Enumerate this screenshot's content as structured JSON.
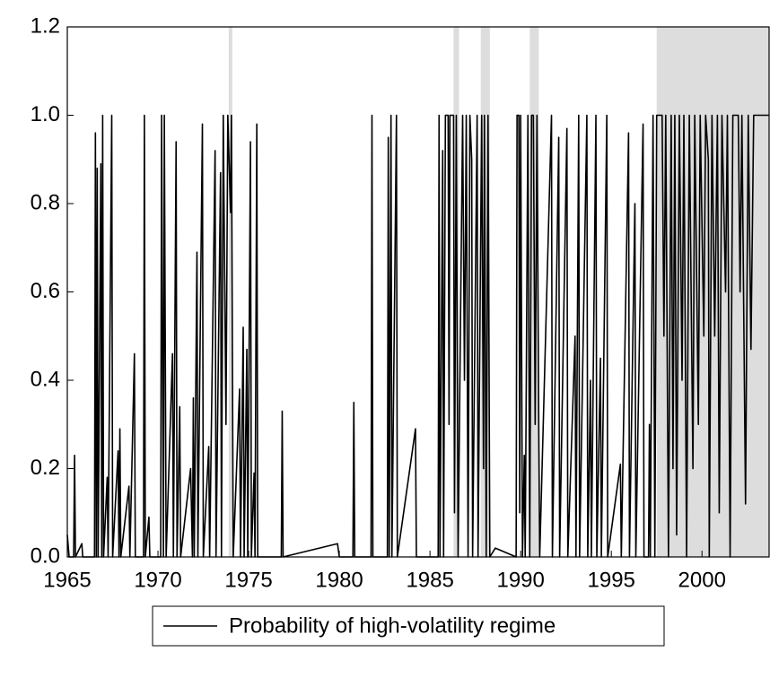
{
  "chart_data": {
    "type": "line",
    "x": [
      1965.0,
      1965.1,
      1965.35,
      1965.4,
      1965.45,
      1965.8,
      1965.85,
      1966.5,
      1966.55,
      1966.6,
      1966.65,
      1966.7,
      1966.85,
      1966.9,
      1966.95,
      1967.0,
      1967.2,
      1967.25,
      1967.45,
      1967.5,
      1967.8,
      1967.85,
      1967.9,
      1967.95,
      1968.4,
      1968.45,
      1968.7,
      1968.75,
      1969.2,
      1969.25,
      1969.3,
      1969.5,
      1969.55,
      1970.15,
      1970.2,
      1970.3,
      1970.35,
      1970.45,
      1970.8,
      1970.85,
      1971.0,
      1971.05,
      1971.2,
      1971.25,
      1971.8,
      1971.9,
      1971.95,
      1972.0,
      1972.15,
      1972.2,
      1972.45,
      1972.5,
      1972.8,
      1972.85,
      1973.15,
      1973.2,
      1973.45,
      1973.5,
      1973.6,
      1973.75,
      1973.85,
      1974.0,
      1974.05,
      1974.15,
      1974.5,
      1974.55,
      1974.7,
      1974.75,
      1974.9,
      1974.95,
      1975.1,
      1975.15,
      1975.3,
      1975.35,
      1975.45,
      1975.5,
      1976.8,
      1976.85,
      1976.9,
      1979.9,
      1980.0,
      1980.75,
      1980.8,
      1980.85,
      1981.75,
      1981.8,
      1981.85,
      1982.65,
      1982.7,
      1982.75,
      1982.85,
      1982.9,
      1983.15,
      1983.2,
      1984.2,
      1984.25,
      1985.45,
      1985.5,
      1985.55,
      1985.7,
      1985.75,
      1985.85,
      1986.0,
      1986.05,
      1986.1,
      1986.3,
      1986.35,
      1986.45,
      1986.55,
      1986.8,
      1986.9,
      1987.0,
      1987.1,
      1987.2,
      1987.3,
      1987.35,
      1987.6,
      1987.65,
      1987.85,
      1987.95,
      1988.0,
      1988.1,
      1988.2,
      1988.3,
      1988.6,
      1989.75,
      1989.8,
      1989.9,
      1989.95,
      1990.0,
      1990.1,
      1990.2,
      1990.25,
      1990.4,
      1990.5,
      1990.6,
      1990.7,
      1990.8,
      1990.9,
      1991.0,
      1991.05,
      1991.7,
      1991.75,
      1992.1,
      1992.15,
      1992.55,
      1992.6,
      1993.0,
      1993.05,
      1993.2,
      1993.25,
      1993.65,
      1993.7,
      1993.85,
      1993.9,
      1994.15,
      1994.2,
      1994.4,
      1994.45,
      1994.75,
      1994.8,
      1995.5,
      1995.55,
      1995.95,
      1996.0,
      1996.3,
      1996.35,
      1996.75,
      1996.8,
      1997.05,
      1997.1,
      1997.15,
      1997.3,
      1997.4,
      1997.5,
      1997.8,
      1997.9,
      1998.0,
      1998.15,
      1998.3,
      1998.4,
      1998.5,
      1998.6,
      1998.75,
      1998.9,
      1999.0,
      1999.15,
      1999.3,
      1999.5,
      1999.6,
      1999.8,
      1999.9,
      2000.1,
      2000.2,
      2000.35,
      2000.4,
      2000.55,
      2000.7,
      2000.85,
      2000.95,
      2001.1,
      2001.3,
      2001.4,
      2001.55,
      2001.7,
      2002.0,
      2002.1,
      2002.2,
      2002.4,
      2002.55,
      2002.7,
      2002.85,
      2003.2,
      2003.7
    ],
    "series": [
      {
        "name": "Probability of high-volatility regime",
        "color": "#000000",
        "values": [
          0.05,
          0.0,
          0.0,
          0.23,
          0.0,
          0.03,
          0.0,
          0.0,
          0.96,
          0.0,
          0.88,
          0.0,
          0.89,
          0.0,
          1.0,
          0.0,
          0.18,
          0.0,
          1.0,
          0.0,
          0.24,
          0.0,
          0.29,
          0.0,
          0.16,
          0.0,
          0.46,
          0.0,
          0.0,
          1.0,
          0.0,
          0.09,
          0.0,
          0.0,
          1.0,
          0.0,
          1.0,
          0.0,
          0.46,
          0.0,
          0.94,
          0.0,
          0.34,
          0.0,
          0.2,
          0.0,
          0.36,
          0.0,
          0.69,
          0.0,
          0.98,
          0.0,
          0.25,
          0.0,
          0.92,
          0.0,
          0.87,
          0.0,
          1.0,
          0.3,
          1.0,
          0.78,
          1.0,
          0.0,
          0.38,
          0.0,
          0.52,
          0.0,
          0.47,
          0.0,
          0.94,
          0.0,
          0.19,
          0.0,
          0.98,
          0.0,
          0.0,
          0.33,
          0.0,
          0.03,
          0.0,
          0.0,
          0.35,
          0.0,
          0.0,
          1.0,
          0.0,
          0.0,
          0.95,
          0.0,
          1.0,
          0.0,
          1.0,
          0.0,
          0.29,
          0.0,
          0.0,
          1.0,
          0.0,
          0.92,
          0.0,
          1.0,
          1.0,
          0.3,
          1.0,
          1.0,
          0.1,
          1.0,
          0.0,
          1.0,
          0.4,
          1.0,
          0.0,
          1.0,
          0.9,
          0.0,
          1.0,
          0.0,
          1.0,
          0.2,
          1.0,
          0.0,
          1.0,
          0.0,
          0.02,
          0.0,
          1.0,
          1.0,
          0.1,
          1.0,
          0.0,
          0.23,
          0.0,
          1.0,
          0.0,
          1.0,
          1.0,
          0.3,
          1.0,
          0.28,
          0.0,
          1.0,
          0.0,
          0.95,
          0.0,
          0.97,
          0.0,
          0.5,
          0.0,
          1.0,
          0.0,
          1.0,
          0.0,
          0.4,
          0.0,
          1.0,
          0.0,
          0.45,
          0.0,
          1.0,
          0.0,
          0.21,
          0.0,
          0.96,
          0.0,
          0.8,
          0.0,
          0.98,
          0.0,
          0.0,
          0.3,
          0.0,
          1.0,
          0.0,
          1.0,
          1.0,
          0.5,
          1.0,
          0.0,
          1.0,
          0.2,
          1.0,
          0.05,
          1.0,
          0.4,
          1.0,
          0.0,
          1.0,
          0.2,
          1.0,
          0.3,
          1.0,
          0.5,
          1.0,
          0.9,
          0.0,
          1.0,
          0.5,
          1.0,
          0.1,
          1.0,
          0.6,
          1.0,
          0.0,
          1.0,
          1.0,
          0.6,
          1.0,
          0.12,
          1.0,
          0.47,
          1.0,
          1.0,
          1.0
        ]
      }
    ],
    "shaded_regions": [
      [
        1973.9,
        1974.1
      ],
      [
        1986.3,
        1986.6
      ],
      [
        1987.8,
        1988.3
      ],
      [
        1990.5,
        1991.0
      ],
      [
        1997.5,
        2003.7
      ]
    ],
    "shade_color": "#dddddd",
    "xlim": [
      1965,
      2003.7
    ],
    "ylim": [
      0,
      1.2
    ],
    "xticks": [
      1965,
      1970,
      1975,
      1980,
      1985,
      1990,
      1995,
      2000
    ],
    "yticks": [
      {
        "value": 0,
        "label": "0.0"
      },
      0.2,
      0.4,
      0.6,
      0.8,
      {
        "value": 1,
        "label": "1.0"
      },
      1.2
    ],
    "legend": "bottom"
  }
}
